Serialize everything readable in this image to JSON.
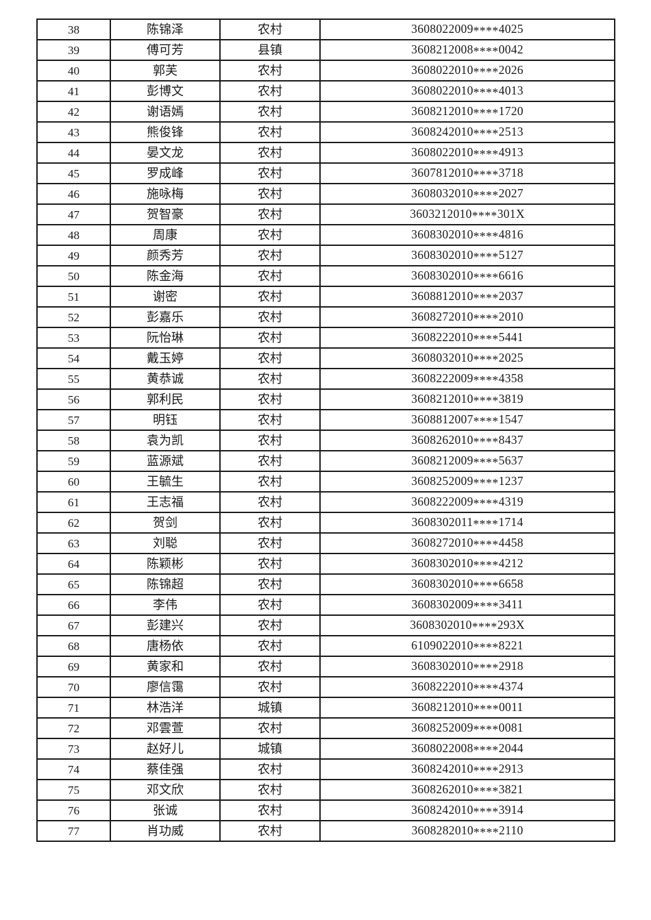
{
  "page": {
    "background_color": "#ffffff",
    "text_color": "#1a1a1a",
    "table_border_color": "#1c1c1c"
  },
  "table": {
    "column_semantics": [
      "serial_number",
      "name",
      "household_type",
      "masked_id_number"
    ],
    "rows": [
      {
        "no": "38",
        "name": "陈锦泽",
        "type": "农村",
        "id": "3608022009****4025"
      },
      {
        "no": "39",
        "name": "傅可芳",
        "type": "县镇",
        "id": "3608212008****0042"
      },
      {
        "no": "40",
        "name": "郭芙",
        "type": "农村",
        "id": "3608022010****2026"
      },
      {
        "no": "41",
        "name": "彭博文",
        "type": "农村",
        "id": "3608022010****4013"
      },
      {
        "no": "42",
        "name": "谢语嫣",
        "type": "农村",
        "id": "3608212010****1720"
      },
      {
        "no": "43",
        "name": "熊俊锋",
        "type": "农村",
        "id": "3608242010****2513"
      },
      {
        "no": "44",
        "name": "晏文龙",
        "type": "农村",
        "id": "3608022010****4913"
      },
      {
        "no": "45",
        "name": "罗成峰",
        "type": "农村",
        "id": "3607812010****3718"
      },
      {
        "no": "46",
        "name": "施咏梅",
        "type": "农村",
        "id": "3608032010****2027"
      },
      {
        "no": "47",
        "name": "贺智豪",
        "type": "农村",
        "id": "3603212010****301X"
      },
      {
        "no": "48",
        "name": "周康",
        "type": "农村",
        "id": "3608302010****4816"
      },
      {
        "no": "49",
        "name": "颜秀芳",
        "type": "农村",
        "id": "3608302010****5127"
      },
      {
        "no": "50",
        "name": "陈金海",
        "type": "农村",
        "id": "3608302010****6616"
      },
      {
        "no": "51",
        "name": "谢密",
        "type": "农村",
        "id": "3608812010****2037"
      },
      {
        "no": "52",
        "name": "彭嘉乐",
        "type": "农村",
        "id": "3608272010****2010"
      },
      {
        "no": "53",
        "name": "阮怡琳",
        "type": "农村",
        "id": "3608222010****5441"
      },
      {
        "no": "54",
        "name": "戴玉婷",
        "type": "农村",
        "id": "3608032010****2025"
      },
      {
        "no": "55",
        "name": "黄恭诚",
        "type": "农村",
        "id": "3608222009****4358"
      },
      {
        "no": "56",
        "name": "郭利民",
        "type": "农村",
        "id": "3608212010****3819"
      },
      {
        "no": "57",
        "name": "明钰",
        "type": "农村",
        "id": "3608812007****1547"
      },
      {
        "no": "58",
        "name": "袁为凯",
        "type": "农村",
        "id": "3608262010****8437"
      },
      {
        "no": "59",
        "name": "蓝源斌",
        "type": "农村",
        "id": "3608212009****5637"
      },
      {
        "no": "60",
        "name": "王毓生",
        "type": "农村",
        "id": "3608252009****1237"
      },
      {
        "no": "61",
        "name": "王志福",
        "type": "农村",
        "id": "3608222009****4319"
      },
      {
        "no": "62",
        "name": "贺剑",
        "type": "农村",
        "id": "3608302011****1714"
      },
      {
        "no": "63",
        "name": "刘聪",
        "type": "农村",
        "id": "3608272010****4458"
      },
      {
        "no": "64",
        "name": "陈颖彬",
        "type": "农村",
        "id": "3608302010****4212"
      },
      {
        "no": "65",
        "name": "陈锦超",
        "type": "农村",
        "id": "3608302010****6658"
      },
      {
        "no": "66",
        "name": "李伟",
        "type": "农村",
        "id": "3608302009****3411"
      },
      {
        "no": "67",
        "name": "彭建兴",
        "type": "农村",
        "id": "3608302010****293X"
      },
      {
        "no": "68",
        "name": "唐杨依",
        "type": "农村",
        "id": "6109022010****8221"
      },
      {
        "no": "69",
        "name": "黄家和",
        "type": "农村",
        "id": "3608302010****2918"
      },
      {
        "no": "70",
        "name": "廖信霭",
        "type": "农村",
        "id": "3608222010****4374"
      },
      {
        "no": "71",
        "name": "林浩洋",
        "type": "城镇",
        "id": "3608212010****0011"
      },
      {
        "no": "72",
        "name": "邓雲萱",
        "type": "农村",
        "id": "3608252009****0081"
      },
      {
        "no": "73",
        "name": "赵好儿",
        "type": "城镇",
        "id": "3608022008****2044"
      },
      {
        "no": "74",
        "name": "蔡佳强",
        "type": "农村",
        "id": "3608242010****2913"
      },
      {
        "no": "75",
        "name": "邓文欣",
        "type": "农村",
        "id": "3608262010****3821"
      },
      {
        "no": "76",
        "name": "张诚",
        "type": "农村",
        "id": "3608242010****3914"
      },
      {
        "no": "77",
        "name": "肖功威",
        "type": "农村",
        "id": "3608282010****2110"
      }
    ]
  }
}
